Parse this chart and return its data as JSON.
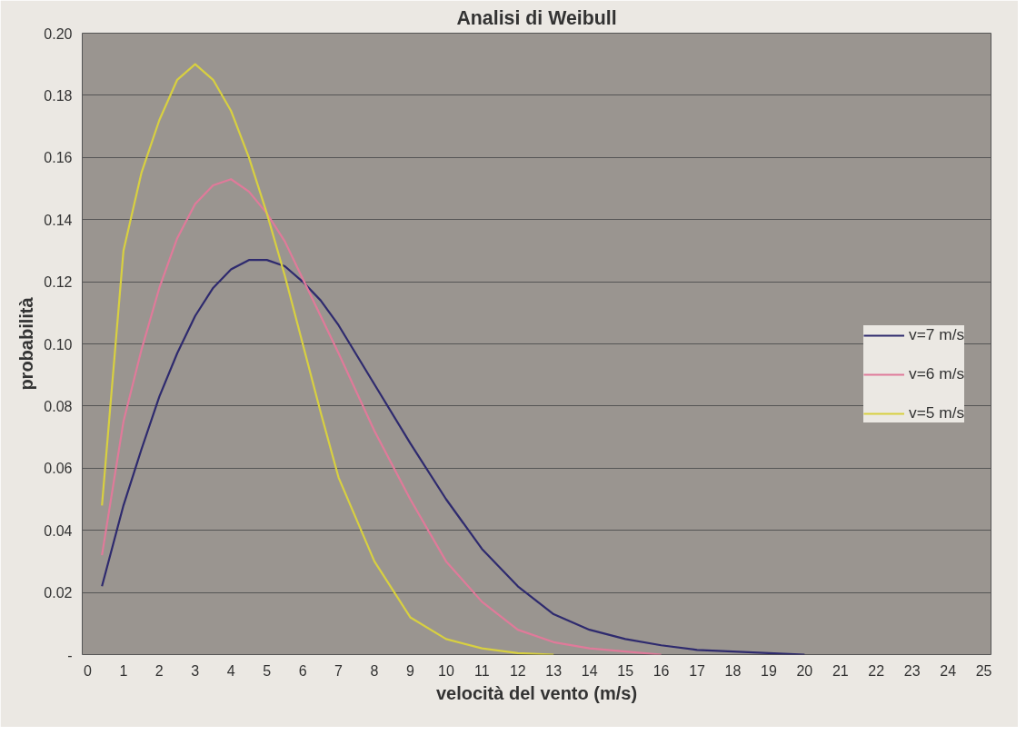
{
  "chart_data": {
    "type": "line",
    "title": "Analisi di Weibull",
    "xlabel": "velocità del vento (m/s)",
    "ylabel": "probabilità",
    "x": [
      0.4,
      1,
      1.5,
      2,
      2.5,
      3,
      3.5,
      4,
      4.5,
      5,
      5.5,
      6,
      6.5,
      7,
      8,
      9,
      10,
      11,
      12,
      13,
      14,
      15,
      16,
      17,
      18,
      19,
      20
    ],
    "series": [
      {
        "name": "v=7 m/s",
        "color": "#2e2a6e",
        "values": [
          0.022,
          0.048,
          0.066,
          0.083,
          0.097,
          0.109,
          0.118,
          0.124,
          0.127,
          0.127,
          0.125,
          0.12,
          0.114,
          0.106,
          0.087,
          0.068,
          0.05,
          0.034,
          0.022,
          0.013,
          0.008,
          0.005,
          0.003,
          0.0015,
          0.001,
          0.0005,
          0
        ]
      },
      {
        "name": "v=6 m/s",
        "color": "#e07a9a",
        "x": [
          0.4,
          1,
          1.5,
          2,
          2.5,
          3,
          3.5,
          4,
          4.5,
          5,
          5.5,
          6,
          6.5,
          7,
          8,
          9,
          10,
          11,
          12,
          13,
          14,
          15,
          16
        ],
        "values": [
          0.032,
          0.075,
          0.098,
          0.118,
          0.134,
          0.145,
          0.151,
          0.153,
          0.149,
          0.142,
          0.133,
          0.121,
          0.109,
          0.097,
          0.072,
          0.05,
          0.03,
          0.017,
          0.008,
          0.004,
          0.002,
          0.001,
          0
        ]
      },
      {
        "name": "v=5 m/s",
        "color": "#d8d040",
        "x": [
          0.4,
          1,
          1.5,
          2,
          2.5,
          3,
          3.5,
          4,
          4.5,
          5,
          5.5,
          6,
          6.5,
          7,
          8,
          9,
          10,
          11,
          12,
          13
        ],
        "values": [
          0.048,
          0.13,
          0.155,
          0.172,
          0.185,
          0.19,
          0.185,
          0.175,
          0.16,
          0.142,
          0.122,
          0.1,
          0.078,
          0.057,
          0.03,
          0.012,
          0.005,
          0.002,
          0.0005,
          0
        ]
      }
    ],
    "xlim": [
      -0.15,
      25.2
    ],
    "xticks": [
      0,
      1,
      2,
      3,
      4,
      5,
      6,
      7,
      8,
      9,
      10,
      11,
      12,
      13,
      14,
      15,
      16,
      17,
      18,
      19,
      20,
      21,
      22,
      23,
      24,
      25
    ],
    "ylim": [
      0,
      0.2
    ],
    "yticks": [
      {
        "value": 0,
        "label": "-"
      },
      0.02,
      0.04,
      0.06,
      0.08,
      {
        "value": 0.1,
        "label": "0.10"
      },
      0.12,
      0.14,
      0.16,
      0.18,
      {
        "value": 0.2,
        "label": "0.20"
      }
    ],
    "grid": "y",
    "legend": "right",
    "marker": "none",
    "line_style": "solid"
  }
}
